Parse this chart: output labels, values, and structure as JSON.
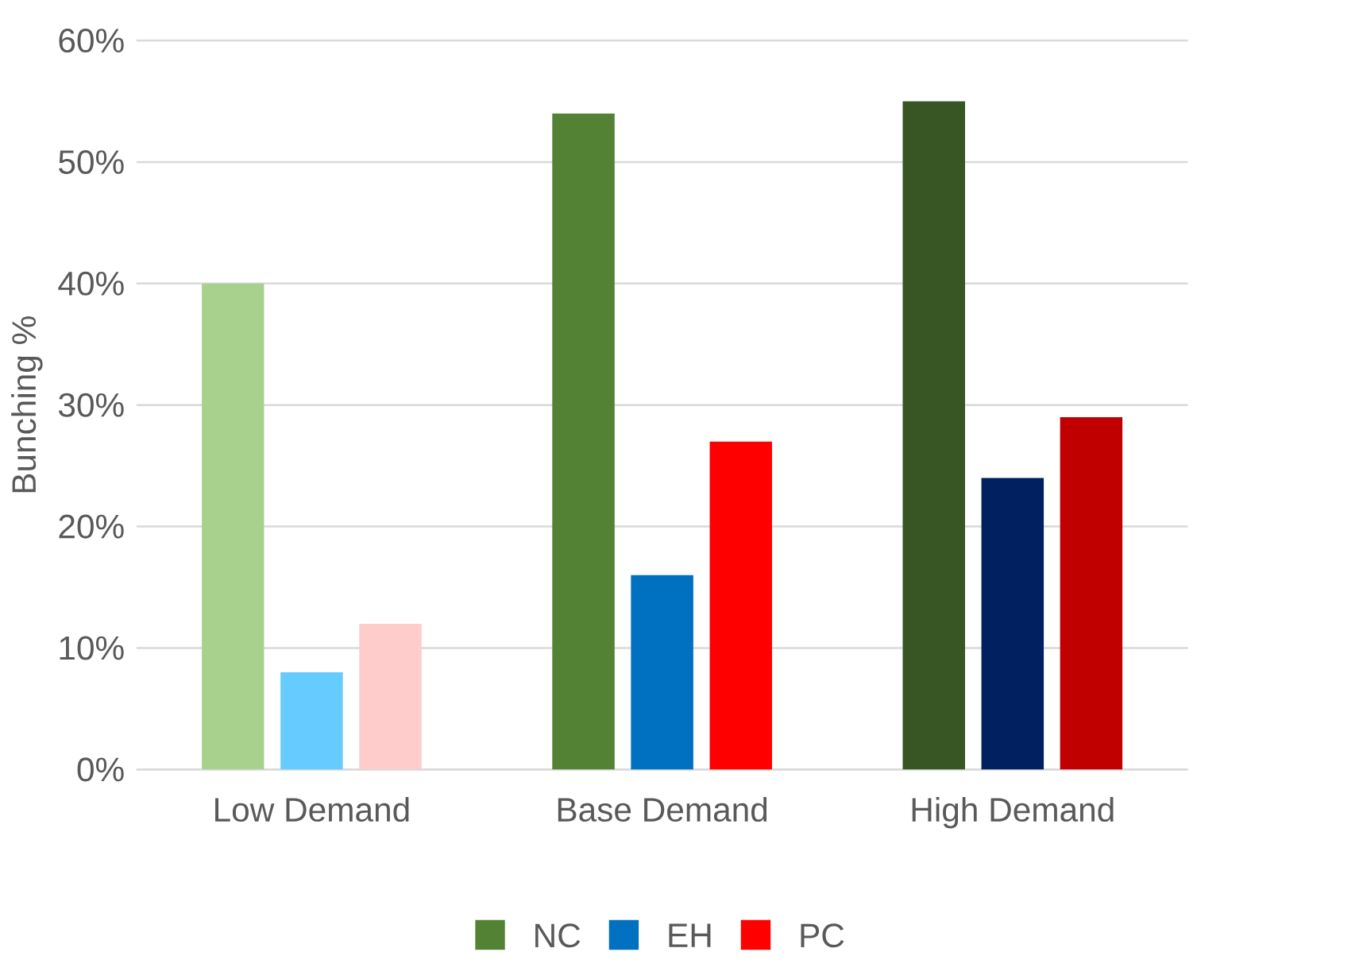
{
  "chart_data": {
    "type": "bar",
    "ylabel": "Bunching %",
    "categories": [
      "Low Demand",
      "Base Demand",
      "High Demand"
    ],
    "series": [
      {
        "name": "NC",
        "color": "#548235",
        "colors": [
          "#a9d18e",
          "#548235",
          "#375623"
        ],
        "values": [
          40,
          54,
          55
        ]
      },
      {
        "name": "EH",
        "color": "#0070c0",
        "colors": [
          "#66ccff",
          "#0070c0",
          "#002060"
        ],
        "values": [
          8,
          16,
          24
        ]
      },
      {
        "name": "PC",
        "color": "#ff0000",
        "colors": [
          "#ffcccc",
          "#ff0000",
          "#c00000"
        ],
        "values": [
          12,
          27,
          29
        ]
      }
    ],
    "ylim": [
      0,
      60
    ],
    "yticks": [
      {
        "value": 0,
        "label": "0%"
      },
      {
        "value": 10,
        "label": "10%"
      },
      {
        "value": 20,
        "label": "20%"
      },
      {
        "value": 30,
        "label": "30%"
      },
      {
        "value": 40,
        "label": "40%"
      },
      {
        "value": 50,
        "label": "50%"
      },
      {
        "value": 60,
        "label": "60%"
      }
    ],
    "grid": "y",
    "legend": "bottom"
  }
}
